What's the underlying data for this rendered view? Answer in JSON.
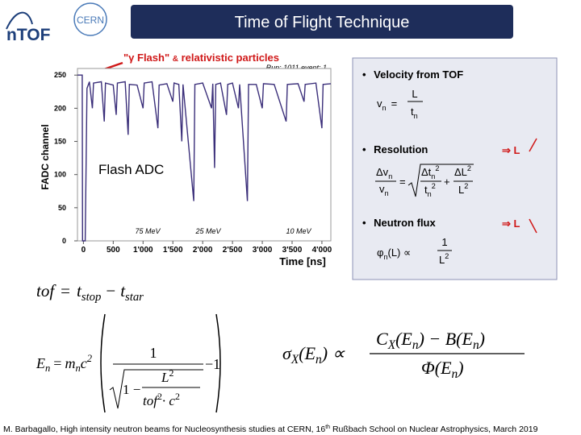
{
  "header": {
    "title": "Time of Flight Technique",
    "logos": [
      "nTOF",
      "CERN"
    ]
  },
  "annotation": {
    "flash": "\"γ Flash\"",
    "and": "&",
    "rest": "relativistic particles",
    "run": "Run: 1011 event: 1"
  },
  "chart_data": {
    "type": "line",
    "xlabel": "Time [ns]",
    "ylabel": "FADC channel",
    "inset_label": "Flash ADC",
    "energy_labels": [
      "75 MeV",
      "25 MeV",
      "10 MeV"
    ],
    "x": [
      -100,
      -20,
      -15,
      30,
      60,
      100,
      150,
      170,
      300,
      350,
      370,
      500,
      550,
      570,
      700,
      750,
      770,
      900,
      1000,
      1020,
      1150,
      1250,
      1270,
      1400,
      1500,
      1520,
      1600,
      1650,
      1670,
      1850,
      1870,
      2000,
      2150,
      2170,
      2200,
      2220,
      2300,
      2400,
      2420,
      2500,
      2600,
      2620,
      2750,
      2770,
      2900,
      3000,
      3020,
      3200,
      3400,
      3420,
      3600,
      3700,
      3720,
      3900,
      4000,
      4020,
      4150
    ],
    "values": [
      250,
      250,
      0,
      0,
      230,
      240,
      200,
      238,
      240,
      180,
      238,
      235,
      190,
      238,
      240,
      160,
      236,
      235,
      200,
      238,
      240,
      170,
      235,
      237,
      210,
      238,
      236,
      150,
      236,
      60,
      236,
      238,
      200,
      237,
      110,
      236,
      238,
      190,
      236,
      238,
      200,
      236,
      60,
      236,
      236,
      200,
      237,
      236,
      180,
      236,
      237,
      210,
      236,
      238,
      170,
      236,
      237
    ],
    "color": "#3b2f7a",
    "xlim": [
      -100,
      4150
    ],
    "ylim": [
      0,
      260
    ],
    "xticks": [
      0,
      500,
      {
        "value": 1000,
        "label": "1'000"
      },
      {
        "value": 1500,
        "label": "1'500"
      },
      {
        "value": 2000,
        "label": "2'000"
      },
      {
        "value": 2500,
        "label": "2'500"
      },
      {
        "value": 3000,
        "label": "3'000"
      },
      {
        "value": 3500,
        "label": "3'500"
      },
      {
        "value": 4000,
        "label": "4'000"
      }
    ],
    "yticks": [
      0,
      50,
      100,
      150,
      200,
      250
    ]
  },
  "panel": {
    "bullets": [
      "Velocity from TOF",
      "Resolution",
      "Neutron flux"
    ],
    "velocity": [
      "v",
      "n",
      "=",
      "L",
      "t",
      "n"
    ],
    "resolution": [
      "Δv",
      "n",
      "v",
      "n",
      "=",
      "Δt",
      "n",
      "2",
      "t",
      "n",
      "2",
      "+",
      "ΔL",
      "2",
      "L",
      "2"
    ],
    "flux": [
      "φ",
      "n",
      "(L) ∝",
      "1",
      "L",
      "2"
    ],
    "implies": [
      "⇒ L",
      "⇒ L"
    ]
  },
  "formulas": {
    "tof": [
      "tof",
      "=",
      "t",
      "stop",
      "−",
      "t",
      "star"
    ],
    "energy": [
      "E",
      "n",
      "=",
      "m",
      "n",
      "c",
      "2",
      "1",
      "1 −",
      "L",
      "2",
      "tof",
      "2",
      "· c",
      "2",
      "−1"
    ],
    "sigma": [
      "σ",
      "X",
      "(E",
      "n",
      ") ∝",
      "C",
      "X",
      "(E",
      "n",
      ") − B(E",
      "n",
      ")",
      "Φ(E",
      "n",
      ")"
    ]
  },
  "footer": [
    "M. Barbagallo, High intensity neutron beams for Nucleosynthesis studies at CERN, 16",
    "th",
    " Rußbach School on Nuclear Astrophysics, March  2019"
  ]
}
